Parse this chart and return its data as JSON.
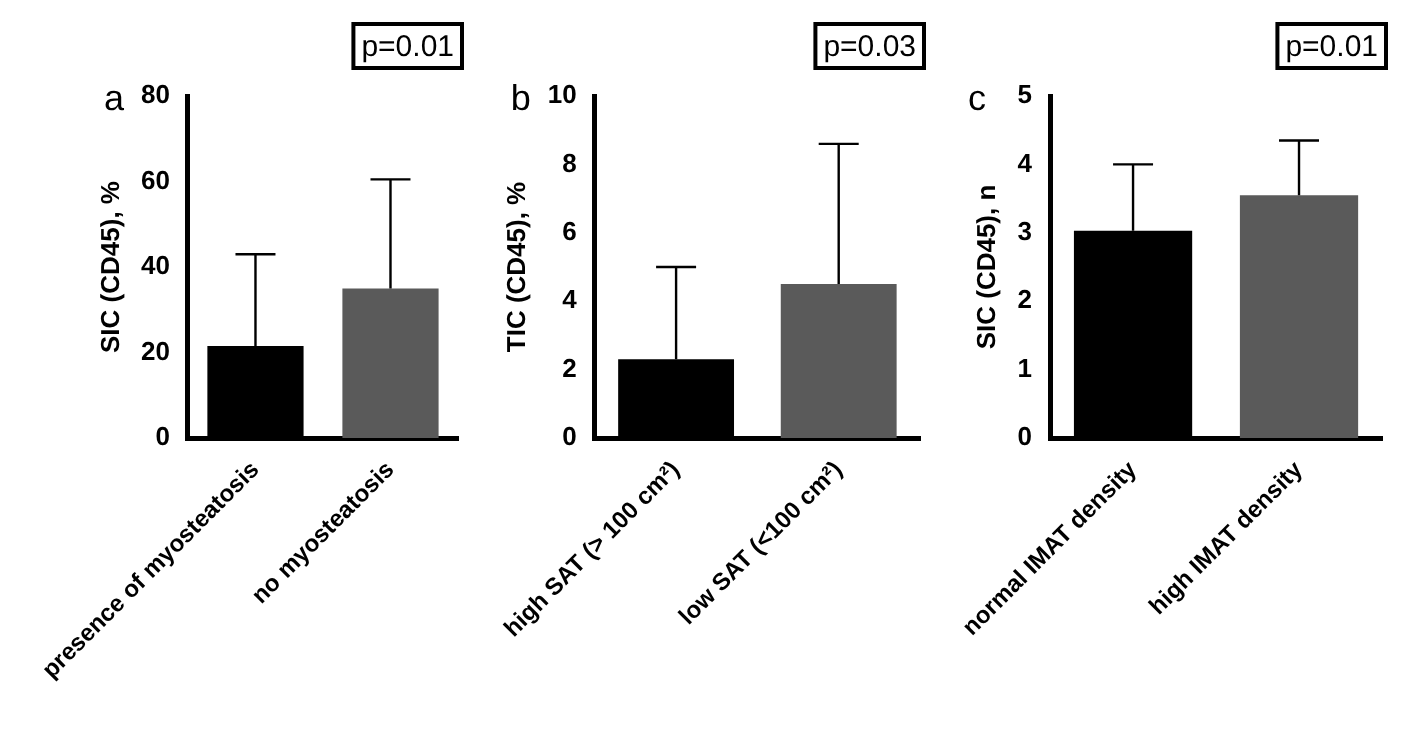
{
  "chart_data": [
    {
      "type": "bar",
      "ylabel": "SIC (CD45), %",
      "categories": [
        "presence of myosteatosis",
        "no myosteatosis"
      ],
      "colors": [
        "#000000",
        "#5a5a5a"
      ],
      "values": [
        21.5,
        35
      ],
      "errors": [
        [
          21.5,
          43
        ],
        [
          35,
          60.5
        ]
      ],
      "ylim": [
        0,
        80
      ],
      "yticks": [
        0,
        20,
        40,
        60,
        80
      ],
      "grid": false,
      "annotations": [
        "a",
        "p=0.01"
      ]
    },
    {
      "type": "bar",
      "ylabel": "TIC (CD45), %",
      "categories": [
        "high SAT (> 100 cm²)",
        "low SAT (<100 cm²)"
      ],
      "colors": [
        "#000000",
        "#5a5a5a"
      ],
      "values": [
        2.3,
        4.5
      ],
      "errors": [
        [
          2.3,
          5.0
        ],
        [
          4.5,
          8.6
        ]
      ],
      "ylim": [
        0,
        10
      ],
      "yticks": [
        0,
        2,
        4,
        6,
        8,
        10
      ],
      "grid": false,
      "annotations": [
        "b",
        "p=0.03"
      ]
    },
    {
      "type": "bar",
      "ylabel": "SIC (CD45), n",
      "categories": [
        "normal IMAT density",
        "high IMAT density"
      ],
      "colors": [
        "#000000",
        "#5a5a5a"
      ],
      "values": [
        3.03,
        3.55
      ],
      "errors": [
        [
          3.03,
          4.0
        ],
        [
          3.55,
          4.35
        ]
      ],
      "ylim": [
        0,
        5
      ],
      "yticks": [
        0,
        1,
        2,
        3,
        4,
        5
      ],
      "grid": false,
      "annotations": [
        "c",
        "p=0.01"
      ]
    }
  ]
}
